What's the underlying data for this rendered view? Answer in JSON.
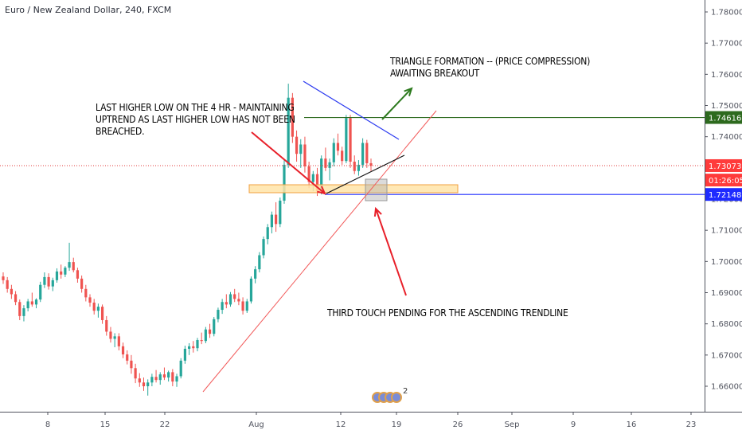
{
  "header": {
    "title": "Euro / New Zealand Dollar, 240, FXCM"
  },
  "chart_data": {
    "type": "candlestick",
    "title": "Euro / New Zealand Dollar, 240, FXCM",
    "y_ticks": [
      "1.78000",
      "1.77000",
      "1.76000",
      "1.75000",
      "1.74000",
      "1.73000",
      "1.72000",
      "1.71000",
      "1.70000",
      "1.69000",
      "1.68000",
      "1.67000",
      "1.66000"
    ],
    "x_ticks": [
      "8",
      "15",
      "22",
      "Aug",
      "12",
      "19",
      "26",
      "Sep",
      "9",
      "16",
      "23"
    ],
    "ylim": [
      1.6535,
      1.7835
    ],
    "price_labels": [
      {
        "text": "1.74616",
        "value": 1.74616,
        "color": "#2d6a1e"
      },
      {
        "text": "1.73073",
        "value": 1.73073,
        "color": "#ff3b3b"
      },
      {
        "text": "01:26:05",
        "value": 1.7261,
        "color": "#ff3b3b"
      },
      {
        "text": "1.72148",
        "value": 1.72148,
        "color": "#1e2bff"
      }
    ],
    "horizontal_levels": [
      {
        "name": "resistance",
        "value": 1.74616,
        "color": "#2d6a1e"
      },
      {
        "name": "support",
        "value": 1.72148,
        "color": "#1e2bff"
      },
      {
        "name": "current price",
        "value": 1.73073,
        "color": "#e03b3b"
      }
    ],
    "annotations": [
      "TRIANGLE FORMATION -- (PRICE COMPRESSION)\nAWAITING BREAKOUT",
      "LAST HIGHER LOW ON THE 4 HR - MAINTAINING\nUPTREND AS LAST HIGHER LOW HAS NOT BEEN\nBREACHED.",
      "THIRD TOUCH PENDING FOR THE ASCENDING TRENDLINE"
    ],
    "events_count": "2",
    "candles": [
      [
        1.6952,
        1.6965,
        1.6928,
        1.694
      ],
      [
        1.694,
        1.695,
        1.69,
        1.6912
      ],
      [
        1.6912,
        1.6925,
        1.688,
        1.6895
      ],
      [
        1.6895,
        1.6905,
        1.686,
        1.687
      ],
      [
        1.687,
        1.6878,
        1.6812,
        1.6825
      ],
      [
        1.6825,
        1.686,
        1.6808,
        1.685
      ],
      [
        1.685,
        1.688,
        1.684,
        1.6872
      ],
      [
        1.6872,
        1.69,
        1.6855,
        1.6862
      ],
      [
        1.6862,
        1.6882,
        1.685,
        1.6878
      ],
      [
        1.6878,
        1.6935,
        1.687,
        1.6925
      ],
      [
        1.6925,
        1.6965,
        1.6915,
        1.695
      ],
      [
        1.695,
        1.6962,
        1.691,
        1.692
      ],
      [
        1.692,
        1.6948,
        1.6905,
        1.694
      ],
      [
        1.694,
        1.6978,
        1.6932,
        1.6968
      ],
      [
        1.6968,
        1.699,
        1.6945,
        1.6958
      ],
      [
        1.6958,
        1.6985,
        1.695,
        1.698
      ],
      [
        1.698,
        1.706,
        1.697,
        1.6998
      ],
      [
        1.6998,
        1.7012,
        1.6965,
        1.6972
      ],
      [
        1.6972,
        1.698,
        1.6932,
        1.6945
      ],
      [
        1.6945,
        1.6955,
        1.69,
        1.6912
      ],
      [
        1.6912,
        1.6925,
        1.6872,
        1.6885
      ],
      [
        1.6885,
        1.6895,
        1.6855,
        1.6868
      ],
      [
        1.6868,
        1.688,
        1.683,
        1.6842
      ],
      [
        1.6842,
        1.6865,
        1.682,
        1.6855
      ],
      [
        1.6855,
        1.6862,
        1.68,
        1.6812
      ],
      [
        1.6812,
        1.6825,
        1.6762,
        1.6775
      ],
      [
        1.6775,
        1.679,
        1.674,
        1.6752
      ],
      [
        1.6752,
        1.677,
        1.6725,
        1.676
      ],
      [
        1.676,
        1.677,
        1.6715,
        1.6728
      ],
      [
        1.6728,
        1.674,
        1.669,
        1.6702
      ],
      [
        1.6702,
        1.6715,
        1.667,
        1.6682
      ],
      [
        1.6682,
        1.67,
        1.664,
        1.6658
      ],
      [
        1.6658,
        1.6672,
        1.661,
        1.6625
      ],
      [
        1.6625,
        1.6642,
        1.6598,
        1.6612
      ],
      [
        1.6612,
        1.6628,
        1.6585,
        1.66
      ],
      [
        1.66,
        1.6622,
        1.657,
        1.6612
      ],
      [
        1.6612,
        1.664,
        1.66,
        1.663
      ],
      [
        1.663,
        1.6652,
        1.6612,
        1.662
      ],
      [
        1.662,
        1.6645,
        1.6605,
        1.6638
      ],
      [
        1.6638,
        1.666,
        1.662,
        1.6628
      ],
      [
        1.6628,
        1.665,
        1.6615,
        1.6645
      ],
      [
        1.6645,
        1.6655,
        1.66,
        1.6615
      ],
      [
        1.6615,
        1.664,
        1.6598,
        1.6632
      ],
      [
        1.6632,
        1.669,
        1.6625,
        1.6682
      ],
      [
        1.6682,
        1.673,
        1.6672,
        1.672
      ],
      [
        1.672,
        1.6738,
        1.67,
        1.6728
      ],
      [
        1.6728,
        1.6745,
        1.6708,
        1.6722
      ],
      [
        1.6722,
        1.6755,
        1.6712,
        1.6748
      ],
      [
        1.6748,
        1.6772,
        1.6735,
        1.6745
      ],
      [
        1.6745,
        1.679,
        1.6738,
        1.6782
      ],
      [
        1.6782,
        1.68,
        1.6755,
        1.6768
      ],
      [
        1.6768,
        1.6822,
        1.676,
        1.6815
      ],
      [
        1.6815,
        1.6852,
        1.6805,
        1.6845
      ],
      [
        1.6845,
        1.688,
        1.6832,
        1.687
      ],
      [
        1.687,
        1.6895,
        1.685,
        1.6862
      ],
      [
        1.6862,
        1.6902,
        1.6855,
        1.6895
      ],
      [
        1.6895,
        1.6912,
        1.687,
        1.688
      ],
      [
        1.688,
        1.69,
        1.686,
        1.6872
      ],
      [
        1.6872,
        1.6885,
        1.683,
        1.6842
      ],
      [
        1.6842,
        1.688,
        1.6835,
        1.6872
      ],
      [
        1.6872,
        1.6952,
        1.6865,
        1.6945
      ],
      [
        1.6945,
        1.6985,
        1.693,
        1.6975
      ],
      [
        1.6975,
        1.703,
        1.6965,
        1.702
      ],
      [
        1.702,
        1.708,
        1.701,
        1.7072
      ],
      [
        1.7072,
        1.712,
        1.7055,
        1.711
      ],
      [
        1.711,
        1.716,
        1.709,
        1.715
      ],
      [
        1.715,
        1.719,
        1.7095,
        1.712
      ],
      [
        1.712,
        1.7205,
        1.711,
        1.7195
      ],
      [
        1.7195,
        1.7325,
        1.7185,
        1.731
      ],
      [
        1.731,
        1.757,
        1.73,
        1.7525
      ],
      [
        1.7525,
        1.754,
        1.738,
        1.74
      ],
      [
        1.74,
        1.742,
        1.732,
        1.7345
      ],
      [
        1.7345,
        1.7392,
        1.73,
        1.7375
      ],
      [
        1.7375,
        1.74,
        1.7285,
        1.7305
      ],
      [
        1.7305,
        1.732,
        1.7235,
        1.7255
      ],
      [
        1.7255,
        1.729,
        1.7225,
        1.728
      ],
      [
        1.728,
        1.73,
        1.721,
        1.7225
      ],
      [
        1.7225,
        1.734,
        1.7215,
        1.733
      ],
      [
        1.733,
        1.7365,
        1.729,
        1.73
      ],
      [
        1.73,
        1.733,
        1.726,
        1.7318
      ],
      [
        1.7318,
        1.7395,
        1.7305,
        1.738
      ],
      [
        1.738,
        1.741,
        1.734,
        1.7355
      ],
      [
        1.7355,
        1.7368,
        1.731,
        1.7322
      ],
      [
        1.7322,
        1.747,
        1.7315,
        1.746
      ],
      [
        1.746,
        1.747,
        1.73,
        1.732
      ],
      [
        1.732,
        1.734,
        1.728,
        1.729
      ],
      [
        1.729,
        1.7325,
        1.7275,
        1.731
      ],
      [
        1.731,
        1.7395,
        1.73,
        1.738
      ],
      [
        1.738,
        1.739,
        1.73,
        1.7315
      ],
      [
        1.7315,
        1.733,
        1.729,
        1.7307
      ]
    ],
    "legend": "none",
    "grid": false
  }
}
